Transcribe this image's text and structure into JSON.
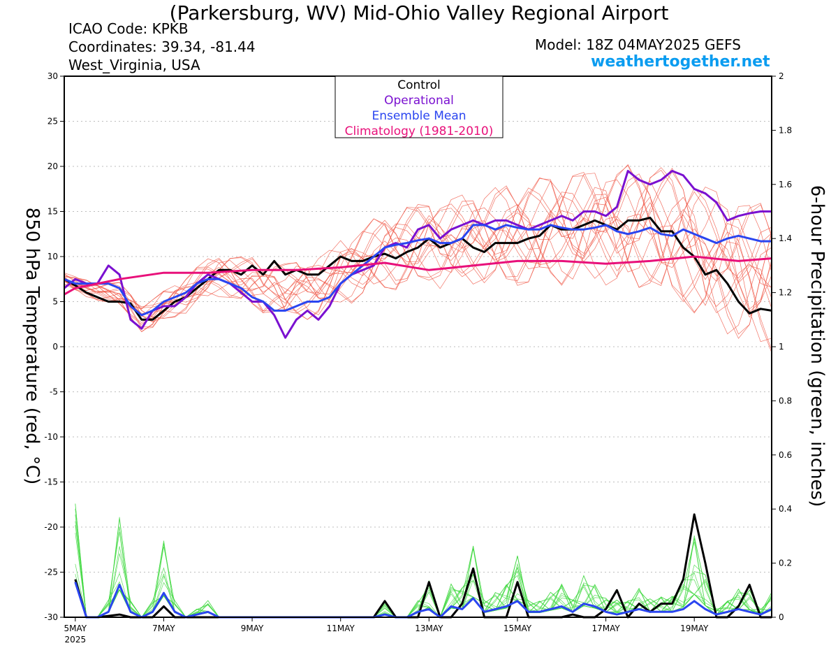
{
  "header": {
    "title": "(Parkersburg, WV) Mid-Ohio Valley Regional Airport",
    "icao": "ICAO Code: KPKB",
    "coordinates": "Coordinates: 39.34, -81.44",
    "region": "West_Virginia, USA",
    "model": "Model: 18Z 04MAY2025 GEFS",
    "site": "weathertogether.net"
  },
  "chart_data": {
    "type": "line",
    "ylabel": "850 hPa Temperature (red, °C)",
    "y2label": "6-hour Precipitation (green, inches)",
    "ylim": [
      -30,
      30
    ],
    "y2lim": [
      0,
      2
    ],
    "y_ticks": [
      30,
      25,
      20,
      15,
      10,
      5,
      0,
      -5,
      -10,
      -15,
      -20,
      -25,
      -30
    ],
    "y2_ticks": [
      2,
      1.8,
      1.6,
      1.4,
      1.2,
      1,
      0.8,
      0.6,
      0.4,
      0.2,
      0
    ],
    "x_range": [
      4.75,
      20.75
    ],
    "x_ticks": [
      {
        "x": 5,
        "label": "5MAY",
        "sub": "2025"
      },
      {
        "x": 7,
        "label": "7MAY"
      },
      {
        "x": 9,
        "label": "9MAY"
      },
      {
        "x": 11,
        "label": "11MAY"
      },
      {
        "x": 13,
        "label": "13MAY"
      },
      {
        "x": 15,
        "label": "15MAY"
      },
      {
        "x": 17,
        "label": "17MAY"
      },
      {
        "x": 19,
        "label": "19MAY"
      }
    ],
    "grid": true,
    "legend": [
      "Control",
      "Operational",
      "Ensemble Mean",
      "Climatology (1981-2010)"
    ],
    "colors": {
      "control": "#000000",
      "operational": "#7a10d0",
      "mean": "#2a45f0",
      "climatology": "#e8107a",
      "members_temp": "#f05a4a",
      "members_precip": "#40d840"
    },
    "series": [
      {
        "name": "Control",
        "kind": "temp",
        "x": [
          4.75,
          5,
          5.25,
          5.5,
          5.75,
          6,
          6.25,
          6.5,
          6.75,
          7,
          7.25,
          7.5,
          7.75,
          8,
          8.25,
          8.5,
          8.75,
          9,
          9.25,
          9.5,
          9.75,
          10,
          10.25,
          10.5,
          10.75,
          11,
          11.25,
          11.5,
          11.75,
          12,
          12.25,
          12.5,
          12.75,
          13,
          13.25,
          13.5,
          13.75,
          14,
          14.25,
          14.5,
          14.75,
          15,
          15.25,
          15.5,
          15.75,
          16,
          16.25,
          16.5,
          16.75,
          17,
          17.25,
          17.5,
          17.75,
          18,
          18.25,
          18.5,
          18.75,
          19,
          19.25,
          19.5,
          19.75,
          20,
          20.25,
          20.5,
          20.75
        ],
        "y": [
          7.5,
          6.8,
          6,
          5.5,
          5,
          5,
          4.8,
          3,
          3,
          4,
          5,
          5.5,
          6.5,
          7.5,
          8.5,
          8.5,
          8,
          9,
          8,
          9.5,
          8,
          8.5,
          8,
          8,
          9,
          10,
          9.5,
          9.5,
          10,
          10.3,
          9.8,
          10.5,
          11,
          12,
          11,
          11.5,
          12,
          11,
          10.5,
          11.5,
          11.5,
          11.5,
          12,
          12.3,
          13.5,
          13,
          13,
          13.5,
          14,
          13.5,
          13,
          14,
          14,
          14.3,
          12.8,
          12.8,
          11,
          10,
          8,
          8.5,
          7,
          5,
          3.7,
          4.2,
          4
        ]
      },
      {
        "name": "Operational",
        "kind": "temp",
        "x": [
          4.75,
          5,
          5.25,
          5.5,
          5.75,
          6,
          6.25,
          6.5,
          6.75,
          7,
          7.25,
          7.5,
          7.75,
          8,
          8.25,
          8.5,
          8.75,
          9,
          9.25,
          9.5,
          9.75,
          10,
          10.25,
          10.5,
          10.75,
          11,
          11.25,
          11.5,
          11.75,
          12,
          12.25,
          12.5,
          12.75,
          13,
          13.25,
          13.5,
          13.75,
          14,
          14.25,
          14.5,
          14.75,
          15,
          15.25,
          15.5,
          15.75,
          16,
          16.25,
          16.5,
          16.75,
          17,
          17.25,
          17.5,
          17.75,
          18,
          18.25,
          18.5,
          18.75,
          19,
          19.25,
          19.5,
          19.75,
          20,
          20.25,
          20.5,
          20.75
        ],
        "y": [
          6.5,
          7.5,
          7,
          7,
          9,
          8,
          3,
          2,
          4,
          4.5,
          4.5,
          5.5,
          7,
          8,
          7.5,
          7,
          6,
          5,
          5,
          3.5,
          1,
          3,
          4,
          3,
          4.5,
          7,
          8,
          8.5,
          9,
          11,
          11.5,
          11,
          13,
          13.5,
          12,
          13,
          13.5,
          14,
          13.5,
          14,
          14,
          13.5,
          13,
          13.5,
          14,
          14.5,
          14,
          15,
          15,
          14.5,
          15.5,
          19.5,
          18.5,
          18,
          18.5,
          19.5,
          19,
          17.5,
          17,
          16,
          14,
          14.5,
          14.8,
          15,
          15
        ]
      },
      {
        "name": "Ensemble Mean",
        "kind": "temp",
        "x": [
          4.75,
          5,
          5.25,
          5.5,
          5.75,
          6,
          6.25,
          6.5,
          6.75,
          7,
          7.25,
          7.5,
          7.75,
          8,
          8.25,
          8.5,
          8.75,
          9,
          9.25,
          9.5,
          9.75,
          10,
          10.25,
          10.5,
          10.75,
          11,
          11.25,
          11.5,
          11.75,
          12,
          12.25,
          12.5,
          12.75,
          13,
          13.25,
          13.5,
          13.75,
          14,
          14.25,
          14.5,
          14.75,
          15,
          15.25,
          15.5,
          15.75,
          16,
          16.25,
          16.5,
          16.75,
          17,
          17.25,
          17.5,
          17.75,
          18,
          18.25,
          18.5,
          18.75,
          19,
          19.25,
          19.5,
          19.75,
          20,
          20.25,
          20.5,
          20.75
        ],
        "y": [
          7.5,
          7,
          7,
          7,
          7,
          6.5,
          4.5,
          3.5,
          4,
          5,
          5.5,
          6,
          7,
          7.5,
          7.5,
          7,
          6.5,
          5.5,
          5,
          4,
          4,
          4.5,
          5,
          5,
          5.5,
          7,
          8,
          9,
          10,
          11,
          11.3,
          11.5,
          11.8,
          12,
          11.5,
          11.5,
          12,
          13.5,
          13.5,
          13,
          13.5,
          13.2,
          13,
          13,
          13.5,
          13.2,
          13,
          13,
          13.2,
          13.5,
          12.8,
          12.5,
          12.8,
          13.2,
          12.5,
          12.3,
          13,
          12.5,
          12,
          11.5,
          12,
          12.3,
          12,
          11.7,
          11.7
        ]
      },
      {
        "name": "Climatology (1981-2010)",
        "kind": "temp",
        "x": [
          4.75,
          5,
          6,
          7,
          8,
          9,
          10,
          11,
          12,
          13,
          14,
          15,
          16,
          17,
          18,
          19,
          20,
          20.75
        ],
        "y": [
          5.8,
          6.5,
          7.5,
          8.2,
          8.2,
          8.5,
          8.5,
          8.8,
          9.3,
          8.5,
          9,
          9.5,
          9.5,
          9.2,
          9.5,
          10,
          9.5,
          9.8
        ]
      },
      {
        "name": "Control",
        "kind": "precip",
        "x": [
          5,
          5.25,
          5.5,
          5.75,
          6,
          6.25,
          6.5,
          6.75,
          7,
          7.25,
          7.5,
          7.75,
          8,
          8.25,
          8.5,
          8.75,
          9,
          9.5,
          10,
          10.5,
          11,
          11.5,
          11.75,
          12,
          12.25,
          12.5,
          12.75,
          13,
          13.25,
          13.5,
          13.75,
          14,
          14.25,
          14.5,
          14.75,
          15,
          15.25,
          15.5,
          15.75,
          16,
          16.25,
          16.5,
          16.75,
          17,
          17.25,
          17.5,
          17.75,
          18,
          18.25,
          18.5,
          18.75,
          19,
          19.25,
          19.5,
          19.75,
          20,
          20.25,
          20.5,
          20.75
        ],
        "y": [
          0.14,
          0,
          0,
          0.005,
          0.01,
          0,
          0,
          0,
          0.04,
          0,
          0,
          0,
          0,
          0,
          0,
          0,
          0,
          0,
          0,
          0,
          0,
          0,
          0,
          0.06,
          0,
          0,
          0,
          0.13,
          0,
          0,
          0.05,
          0.18,
          0,
          0,
          0,
          0.13,
          0,
          0,
          0,
          0,
          0.01,
          0,
          0,
          0.03,
          0.1,
          0,
          0.05,
          0.02,
          0.05,
          0.05,
          0.14,
          0.38,
          0.2,
          0,
          0,
          0.04,
          0.12,
          0,
          0
        ]
      },
      {
        "name": "Ensemble Mean",
        "kind": "precip",
        "x": [
          5,
          5.25,
          5.5,
          5.75,
          6,
          6.25,
          6.5,
          6.75,
          7,
          7.25,
          7.5,
          7.75,
          8,
          8.25,
          8.5,
          8.75,
          9,
          9.5,
          10,
          10.5,
          11,
          11.5,
          11.75,
          12,
          12.25,
          12.5,
          12.75,
          13,
          13.25,
          13.5,
          13.75,
          14,
          14.25,
          14.5,
          14.75,
          15,
          15.25,
          15.5,
          15.75,
          16,
          16.25,
          16.5,
          16.75,
          17,
          17.25,
          17.5,
          17.75,
          18,
          18.25,
          18.5,
          18.75,
          19,
          19.25,
          19.5,
          19.75,
          20,
          20.25,
          20.5,
          20.75
        ],
        "y": [
          0.13,
          0,
          0,
          0.02,
          0.12,
          0.02,
          0,
          0.02,
          0.09,
          0.02,
          0,
          0.01,
          0.02,
          0,
          0,
          0,
          0,
          0,
          0,
          0,
          0,
          0,
          0,
          0.01,
          0,
          0,
          0.02,
          0.03,
          0,
          0.04,
          0.03,
          0.07,
          0.02,
          0.03,
          0.04,
          0.06,
          0.02,
          0.02,
          0.03,
          0.04,
          0.02,
          0.05,
          0.04,
          0.02,
          0.01,
          0.02,
          0.03,
          0.02,
          0.02,
          0.02,
          0.03,
          0.06,
          0.03,
          0.01,
          0.02,
          0.03,
          0.02,
          0.01,
          0.03
        ]
      }
    ]
  }
}
